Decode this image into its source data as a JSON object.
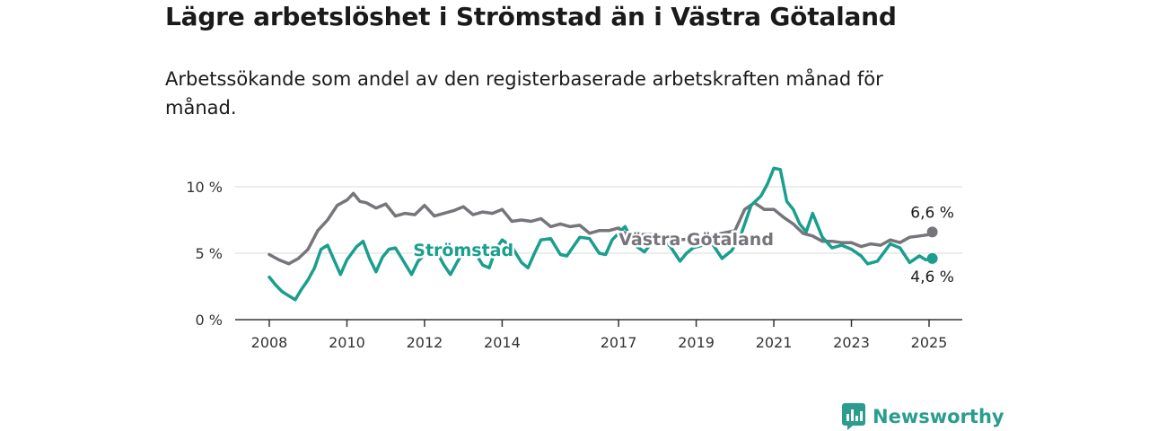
{
  "title": "Lägre arbetslöshet i Strömstad än i Västra Götaland",
  "subtitle": "Arbetssökande som andel av den registerbaserade arbetskraften månad för månad.",
  "brand": {
    "name": "Newsworthy",
    "color": "#2a9d8f"
  },
  "chart_data": {
    "type": "line",
    "title": "",
    "xlabel": "",
    "ylabel": "",
    "ylim": [
      0,
      10
    ],
    "y_ticks": [
      {
        "value": 0,
        "label": "0 %"
      },
      {
        "value": 5,
        "label": "5 %"
      },
      {
        "value": 10,
        "label": "10 %"
      }
    ],
    "x_ticks": [
      "2008",
      "2010",
      "2012",
      "2014",
      "2017",
      "2019",
      "2021",
      "2023",
      "2025"
    ],
    "grid": true,
    "series": [
      {
        "name": "Västra Götaland",
        "color": "#77747a",
        "end_label": "6,6 %",
        "points": [
          [
            "2008-01",
            4.9
          ],
          [
            "2008-04",
            4.5
          ],
          [
            "2008-07",
            4.2
          ],
          [
            "2008-10",
            4.6
          ],
          [
            "2009-01",
            5.3
          ],
          [
            "2009-04",
            6.7
          ],
          [
            "2009-07",
            7.5
          ],
          [
            "2009-10",
            8.6
          ],
          [
            "2010-01",
            9.0
          ],
          [
            "2010-03",
            9.5
          ],
          [
            "2010-05",
            8.9
          ],
          [
            "2010-07",
            8.8
          ],
          [
            "2010-10",
            8.4
          ],
          [
            "2011-01",
            8.7
          ],
          [
            "2011-04",
            7.8
          ],
          [
            "2011-07",
            8.0
          ],
          [
            "2011-10",
            7.9
          ],
          [
            "2012-01",
            8.6
          ],
          [
            "2012-04",
            7.8
          ],
          [
            "2012-07",
            8.0
          ],
          [
            "2012-10",
            8.2
          ],
          [
            "2013-01",
            8.5
          ],
          [
            "2013-04",
            7.9
          ],
          [
            "2013-07",
            8.1
          ],
          [
            "2013-10",
            8.0
          ],
          [
            "2014-01",
            8.3
          ],
          [
            "2014-04",
            7.4
          ],
          [
            "2014-07",
            7.5
          ],
          [
            "2014-10",
            7.4
          ],
          [
            "2015-01",
            7.6
          ],
          [
            "2015-04",
            7.0
          ],
          [
            "2015-07",
            7.2
          ],
          [
            "2015-10",
            7.0
          ],
          [
            "2016-01",
            7.1
          ],
          [
            "2016-04",
            6.5
          ],
          [
            "2016-07",
            6.7
          ],
          [
            "2016-10",
            6.7
          ],
          [
            "2017-01",
            6.9
          ],
          [
            "2017-04",
            6.3
          ],
          [
            "2017-07",
            6.4
          ],
          [
            "2018-01",
            6.4
          ],
          [
            "2018-07",
            6.0
          ],
          [
            "2019-01",
            6.1
          ],
          [
            "2019-07",
            6.4
          ],
          [
            "2020-01",
            6.7
          ],
          [
            "2020-04",
            8.3
          ],
          [
            "2020-07",
            8.8
          ],
          [
            "2020-10",
            8.3
          ],
          [
            "2021-01",
            8.3
          ],
          [
            "2021-04",
            7.7
          ],
          [
            "2021-07",
            7.2
          ],
          [
            "2021-10",
            6.5
          ],
          [
            "2022-01",
            6.3
          ],
          [
            "2022-04",
            5.9
          ],
          [
            "2022-07",
            5.9
          ],
          [
            "2022-10",
            5.8
          ],
          [
            "2023-01",
            5.8
          ],
          [
            "2023-04",
            5.5
          ],
          [
            "2023-07",
            5.7
          ],
          [
            "2023-10",
            5.6
          ],
          [
            "2024-01",
            6.0
          ],
          [
            "2024-04",
            5.8
          ],
          [
            "2024-07",
            6.2
          ],
          [
            "2024-10",
            6.3
          ],
          [
            "2025-01",
            6.4
          ],
          [
            "2025-02",
            6.6
          ]
        ]
      },
      {
        "name": "Strömstad",
        "color": "#1a9e8e",
        "end_label": "4,6 %",
        "points": [
          [
            "2008-01",
            3.2
          ],
          [
            "2008-03",
            2.6
          ],
          [
            "2008-05",
            2.1
          ],
          [
            "2008-07",
            1.8
          ],
          [
            "2008-09",
            1.5
          ],
          [
            "2008-11",
            2.3
          ],
          [
            "2009-01",
            3.0
          ],
          [
            "2009-03",
            3.9
          ],
          [
            "2009-05",
            5.3
          ],
          [
            "2009-07",
            5.6
          ],
          [
            "2009-09",
            4.5
          ],
          [
            "2009-11",
            3.4
          ],
          [
            "2010-01",
            4.5
          ],
          [
            "2010-04",
            5.5
          ],
          [
            "2010-06",
            5.9
          ],
          [
            "2010-08",
            4.6
          ],
          [
            "2010-10",
            3.6
          ],
          [
            "2010-12",
            4.7
          ],
          [
            "2011-02",
            5.3
          ],
          [
            "2011-04",
            5.4
          ],
          [
            "2011-06",
            4.6
          ],
          [
            "2011-09",
            3.4
          ],
          [
            "2011-11",
            4.4
          ],
          [
            "2012-01",
            4.9
          ],
          [
            "2012-03",
            5.5
          ],
          [
            "2012-05",
            5.0
          ],
          [
            "2012-07",
            4.1
          ],
          [
            "2012-09",
            3.4
          ],
          [
            "2012-11",
            4.3
          ],
          [
            "2013-01",
            5.1
          ],
          [
            "2013-04",
            5.3
          ],
          [
            "2013-07",
            4.1
          ],
          [
            "2013-09",
            3.9
          ],
          [
            "2013-11",
            5.3
          ],
          [
            "2014-01",
            6.0
          ],
          [
            "2014-04",
            5.5
          ],
          [
            "2014-07",
            4.3
          ],
          [
            "2014-09",
            3.9
          ],
          [
            "2014-11",
            5.0
          ],
          [
            "2015-01",
            6.0
          ],
          [
            "2015-04",
            6.1
          ],
          [
            "2015-07",
            4.9
          ],
          [
            "2015-09",
            4.8
          ],
          [
            "2015-11",
            5.5
          ],
          [
            "2016-01",
            6.2
          ],
          [
            "2016-04",
            6.1
          ],
          [
            "2016-07",
            5.0
          ],
          [
            "2016-09",
            4.9
          ],
          [
            "2016-11",
            6.0
          ],
          [
            "2017-01",
            6.5
          ],
          [
            "2017-03",
            7.0
          ],
          [
            "2017-06",
            5.6
          ],
          [
            "2017-09",
            5.1
          ],
          [
            "2017-11",
            5.7
          ],
          [
            "2018-02",
            6.2
          ],
          [
            "2018-05",
            5.5
          ],
          [
            "2018-08",
            4.4
          ],
          [
            "2018-10",
            5.0
          ],
          [
            "2018-12",
            5.4
          ],
          [
            "2019-03",
            5.6
          ],
          [
            "2019-06",
            5.7
          ],
          [
            "2019-09",
            4.6
          ],
          [
            "2019-12",
            5.2
          ],
          [
            "2020-03",
            6.5
          ],
          [
            "2020-06",
            8.6
          ],
          [
            "2020-09",
            9.3
          ],
          [
            "2020-11",
            10.2
          ],
          [
            "2021-01",
            11.4
          ],
          [
            "2021-03",
            11.3
          ],
          [
            "2021-05",
            8.9
          ],
          [
            "2021-07",
            8.3
          ],
          [
            "2021-09",
            7.2
          ],
          [
            "2021-11",
            6.6
          ],
          [
            "2022-01",
            8.0
          ],
          [
            "2022-04",
            6.2
          ],
          [
            "2022-07",
            5.4
          ],
          [
            "2022-10",
            5.6
          ],
          [
            "2023-01",
            5.3
          ],
          [
            "2023-04",
            4.8
          ],
          [
            "2023-06",
            4.2
          ],
          [
            "2023-09",
            4.4
          ],
          [
            "2024-01",
            5.7
          ],
          [
            "2024-04",
            5.4
          ],
          [
            "2024-07",
            4.3
          ],
          [
            "2024-10",
            4.8
          ],
          [
            "2024-12",
            4.5
          ],
          [
            "2025-02",
            4.6
          ]
        ]
      }
    ]
  }
}
